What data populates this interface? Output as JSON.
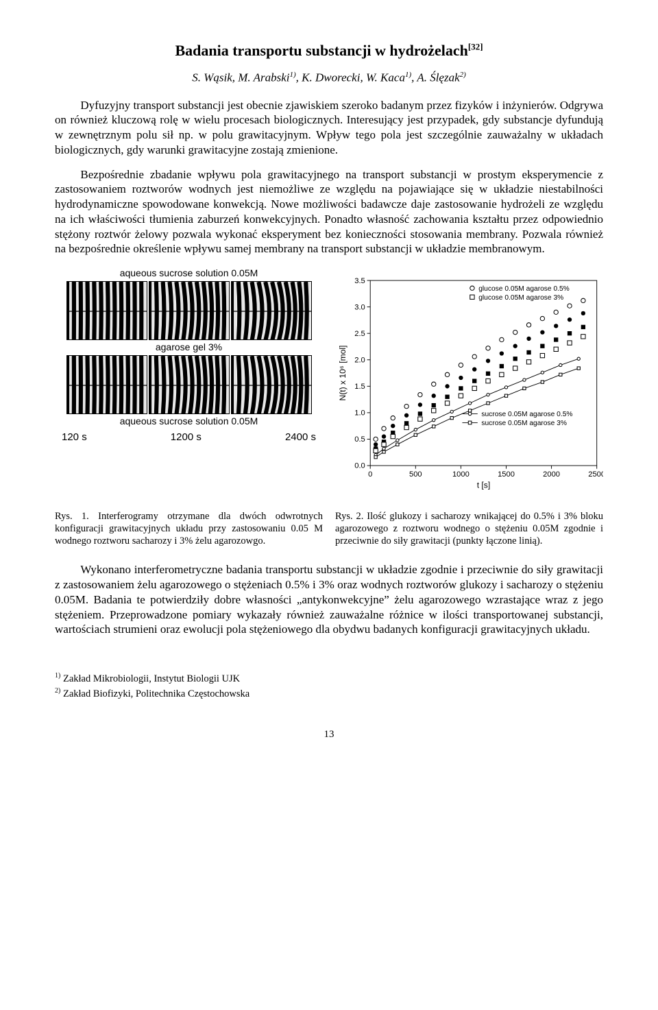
{
  "title": "Badania transportu substancji w hydrożelach",
  "title_ref": "[32]",
  "authors_html": "S. Wąsik,  M. Arabski<sup>1)</sup>, K. Dworecki, W. Kaca<sup>1)</sup>, A. Ślęzak<sup>2)</sup>",
  "para1": "Dyfuzyjny transport substancji jest obecnie zjawiskiem szeroko badanym przez fizyków i inżynierów. Odgrywa on również kluczową rolę w wielu procesach biologicznych. Interesujący jest przypadek, gdy substancje dyfundują w zewnętrznym polu sił np. w polu grawitacyjnym. Wpływ tego pola jest szczególnie zauważalny w układach biologicznych, gdy warunki grawitacyjne zostają zmienione.",
  "para2": "Bezpośrednie zbadanie wpływu pola grawitacyjnego na transport substancji w prostym eksperymencie z zastosowaniem roztworów wodnych jest niemożliwe ze względu na pojawiające się w układzie niestabilności  hydrodynamiczne spowodowane konwekcją. Nowe możliwości badawcze daje zastosowanie hydrożeli ze względu na ich właściwości tłumienia zaburzeń konwekcyjnych. Ponadto własność zachowania kształtu przez odpowiednio stężony roztwór żelowy pozwala wykonać eksperyment bez konieczności stosowania membrany. Pozwala również na bezpośrednie określenie wpływu samej membrany na transport substancji w układzie membranowym.",
  "fig_left": {
    "label_top": "aqueous sucrose solution 0.05M",
    "label_mid": "agarose gel 3%",
    "label_bot": "aqueous sucrose solution 0.05M",
    "times": [
      "120 s",
      "1200 s",
      "2400 s"
    ],
    "cell_count": 3,
    "row_count": 2
  },
  "chart": {
    "type": "scatter-line",
    "xlim": [
      0,
      2500
    ],
    "xticks": [
      0,
      500,
      1000,
      1500,
      2000,
      2500
    ],
    "ylim": [
      0,
      3.5
    ],
    "yticks": [
      0.0,
      0.5,
      1.0,
      1.5,
      2.0,
      2.5,
      3.0,
      3.5
    ],
    "xlabel": "t [s]",
    "ylabel": "N(t) x 10⁶ [mol]",
    "background_color": "#ffffff",
    "axis_color": "#000000",
    "legend_top": [
      {
        "marker": "open-circle",
        "label": "glucose 0.05M agarose 0.5%"
      },
      {
        "marker": "open-square",
        "label": "glucose 0.05M agarose 3%"
      }
    ],
    "legend_bottom": [
      {
        "marker": "small-open-circle",
        "line": true,
        "label": "sucrose 0.05M agarose 0.5%"
      },
      {
        "marker": "small-open-square",
        "line": true,
        "label": "sucrose 0.05M agarose 3%"
      }
    ],
    "series": [
      {
        "name": "glucose-0.5",
        "marker": "filled-circle",
        "color": "#000000",
        "t": [
          60,
          150,
          250,
          400,
          550,
          700,
          850,
          1000,
          1150,
          1300,
          1450,
          1600,
          1750,
          1900,
          2050,
          2200,
          2350
        ],
        "n": [
          0.4,
          0.55,
          0.75,
          0.95,
          1.15,
          1.32,
          1.5,
          1.66,
          1.82,
          1.98,
          2.12,
          2.26,
          2.4,
          2.52,
          2.64,
          2.76,
          2.88
        ]
      },
      {
        "name": "glucose-3",
        "marker": "filled-square",
        "color": "#000000",
        "t": [
          60,
          150,
          250,
          400,
          550,
          700,
          850,
          1000,
          1150,
          1300,
          1450,
          1600,
          1750,
          1900,
          2050,
          2200,
          2350
        ],
        "n": [
          0.32,
          0.45,
          0.62,
          0.8,
          0.98,
          1.14,
          1.3,
          1.46,
          1.6,
          1.74,
          1.88,
          2.02,
          2.14,
          2.26,
          2.38,
          2.5,
          2.62
        ]
      },
      {
        "name": "glucose-0.5-open",
        "marker": "open-circle",
        "color": "#000000",
        "t": [
          60,
          150,
          250,
          400,
          550,
          700,
          850,
          1000,
          1150,
          1300,
          1450,
          1600,
          1750,
          1900,
          2050,
          2200,
          2350
        ],
        "n": [
          0.5,
          0.7,
          0.9,
          1.12,
          1.34,
          1.54,
          1.72,
          1.9,
          2.06,
          2.22,
          2.38,
          2.52,
          2.66,
          2.78,
          2.9,
          3.02,
          3.12
        ]
      },
      {
        "name": "glucose-3-open",
        "marker": "open-square",
        "color": "#000000",
        "t": [
          60,
          150,
          250,
          400,
          550,
          700,
          850,
          1000,
          1150,
          1300,
          1450,
          1600,
          1750,
          1900,
          2050,
          2200,
          2350
        ],
        "n": [
          0.28,
          0.4,
          0.55,
          0.72,
          0.88,
          1.04,
          1.18,
          1.32,
          1.46,
          1.6,
          1.72,
          1.84,
          1.96,
          2.08,
          2.2,
          2.32,
          2.44
        ]
      },
      {
        "name": "sucrose-0.5-line",
        "marker": "small-circle-line",
        "color": "#000000",
        "t": [
          60,
          150,
          300,
          500,
          700,
          900,
          1100,
          1300,
          1500,
          1700,
          1900,
          2100,
          2300
        ],
        "n": [
          0.2,
          0.32,
          0.48,
          0.68,
          0.86,
          1.02,
          1.18,
          1.34,
          1.48,
          1.62,
          1.76,
          1.9,
          2.02
        ]
      },
      {
        "name": "sucrose-3-line",
        "marker": "small-square-line",
        "color": "#000000",
        "t": [
          60,
          150,
          300,
          500,
          700,
          900,
          1100,
          1300,
          1500,
          1700,
          1900,
          2100,
          2300
        ],
        "n": [
          0.16,
          0.26,
          0.4,
          0.58,
          0.74,
          0.9,
          1.04,
          1.18,
          1.32,
          1.46,
          1.58,
          1.72,
          1.84
        ]
      }
    ]
  },
  "caption1": "Rys. 1. Interferogramy otrzymane dla dwóch odwrotnych konfiguracji grawitacyjnych układu przy zastosowaniu 0.05 M wodnego roztworu sacharozy i 3% żelu agarozowgo.",
  "caption2": "Rys. 2. Ilość  glukozy i sacharozy  wnikającej do 0.5% i 3% bloku agarozowego z roztworu wodnego o stężeniu 0.05M zgodnie i przeciwnie do siły grawitacji (punkty łączone linią).",
  "para3": "Wykonano interferometryczne badania transportu substancji w układzie zgodnie i przeciwnie do siły grawitacji z zastosowaniem żelu agarozowego o stężeniach 0.5% i 3% oraz wodnych roztworów glukozy i sacharozy o stężeniu 0.05M. Badania te potwierdziły dobre własności „antykonwekcyjne” żelu agarozowego wzrastające wraz z jego stężeniem. Przeprowadzone pomiary wykazały również zauważalne różnice w ilości transportowanej substancji, wartościach strumieni oraz ewolucji pola stężeniowego dla obydwu badanych konfiguracji grawitacyjnych układu.",
  "footnote1": "Zakład Mikrobiologii, Instytut Biologii UJK",
  "footnote2": "Zakład Biofizyki, Politechnika Częstochowska",
  "page_number": "13"
}
